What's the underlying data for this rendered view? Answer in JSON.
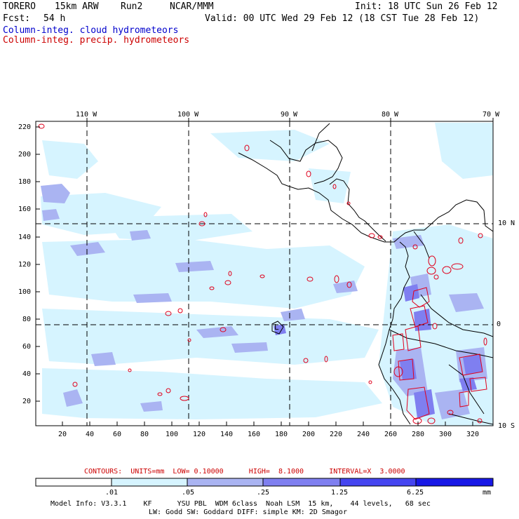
{
  "header": {
    "model": "TORERO",
    "resolution": "15km ARW",
    "run": "Run2",
    "org": "NCAR/MMM",
    "init": "Init: 18 UTC Sun 26 Feb 12",
    "fcst_label": "Fcst:",
    "fcst_hours": "54 h",
    "valid": "Valid: 00 UTC Wed 29 Feb 12 (18 CST Tue 28 Feb 12)",
    "field1": "Column-integ. cloud hydrometeors",
    "field2": "Column-integ. precip. hydrometeors",
    "field1_color": "#0000cc",
    "field2_color": "#cc0000"
  },
  "map": {
    "top_lon_labels": [
      "110 W",
      "100 W",
      "90 W",
      "80 W",
      "70 W"
    ],
    "right_lat_labels": [
      "10 N",
      "0",
      "10 S"
    ],
    "left_axis_ticks": [
      "220",
      "200",
      "180",
      "160",
      "140",
      "120",
      "100",
      "80",
      "60",
      "40",
      "20"
    ],
    "bottom_axis_ticks": [
      "20",
      "40",
      "60",
      "80",
      "100",
      "120",
      "140",
      "160",
      "180",
      "200",
      "220",
      "240",
      "260",
      "280",
      "300",
      "320"
    ],
    "low_label": "L"
  },
  "contours": {
    "text": "CONTOURS:  UNITS=mm  LOW= 0.10000      HIGH=  8.1000      INTERVAL=X  3.0000"
  },
  "colorbar": {
    "labels": [
      ".01",
      ".05",
      ".25",
      "1.25",
      "6.25"
    ],
    "units": "mm",
    "colors": [
      "#ffffff",
      "#d6f4ff",
      "#aab4f2",
      "#7f7ff0",
      "#4545f0",
      "#1818e6"
    ]
  },
  "footer": {
    "line1": "Model Info: V3.3.1    KF      YSU PBL  WDM 6class  Noah LSM  15 km,    44 levels,   68 sec",
    "line2": "LW: Godd SW: Goddard DIFF: simple KM: 2D Smagor"
  }
}
